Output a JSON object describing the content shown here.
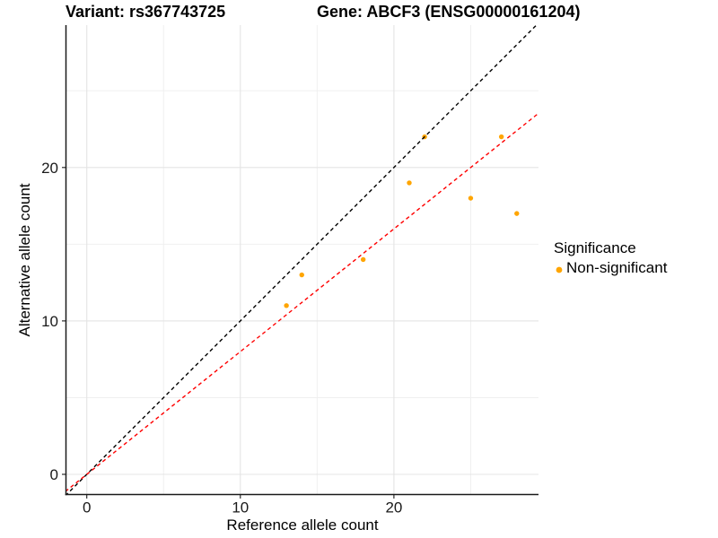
{
  "header": {
    "variant_title": "Variant: rs367743725",
    "gene_title": "Gene: ABCF3 (ENSG00000161204)"
  },
  "legend": {
    "title": "Significance",
    "items": [
      {
        "label": "Non-significant",
        "color": "#FFA500",
        "marker": "dot-icon"
      }
    ],
    "position": "right"
  },
  "chart_data": {
    "type": "scatter",
    "titles": [
      "Variant: rs367743725",
      "Gene: ABCF3 (ENSG00000161204)"
    ],
    "xlabel": "Reference allele count",
    "ylabel": "Alternative allele count",
    "xlim": [
      -1.4,
      29.4
    ],
    "ylim": [
      -1.3,
      29.3
    ],
    "x_major_ticks": [
      0,
      10,
      20
    ],
    "y_major_ticks": [
      0,
      10,
      20
    ],
    "x_minor_ticks": [
      5,
      15,
      25
    ],
    "y_minor_ticks": [
      5,
      15,
      25
    ],
    "grid": true,
    "legend_position": "right",
    "series": [
      {
        "name": "Non-significant",
        "color": "#FFA500",
        "points": [
          {
            "x": 13,
            "y": 11
          },
          {
            "x": 14,
            "y": 13
          },
          {
            "x": 18,
            "y": 14
          },
          {
            "x": 21,
            "y": 19
          },
          {
            "x": 22,
            "y": 22
          },
          {
            "x": 25,
            "y": 18
          },
          {
            "x": 27,
            "y": 22
          },
          {
            "x": 28,
            "y": 17
          }
        ]
      }
    ],
    "lines": [
      {
        "name": "identity-line",
        "slope": 1.0,
        "intercept": 0,
        "style": "dashed",
        "color": "#000000"
      },
      {
        "name": "fit-line",
        "slope": 0.8,
        "intercept": 0,
        "style": "dashed",
        "color": "#FF0000"
      }
    ]
  }
}
